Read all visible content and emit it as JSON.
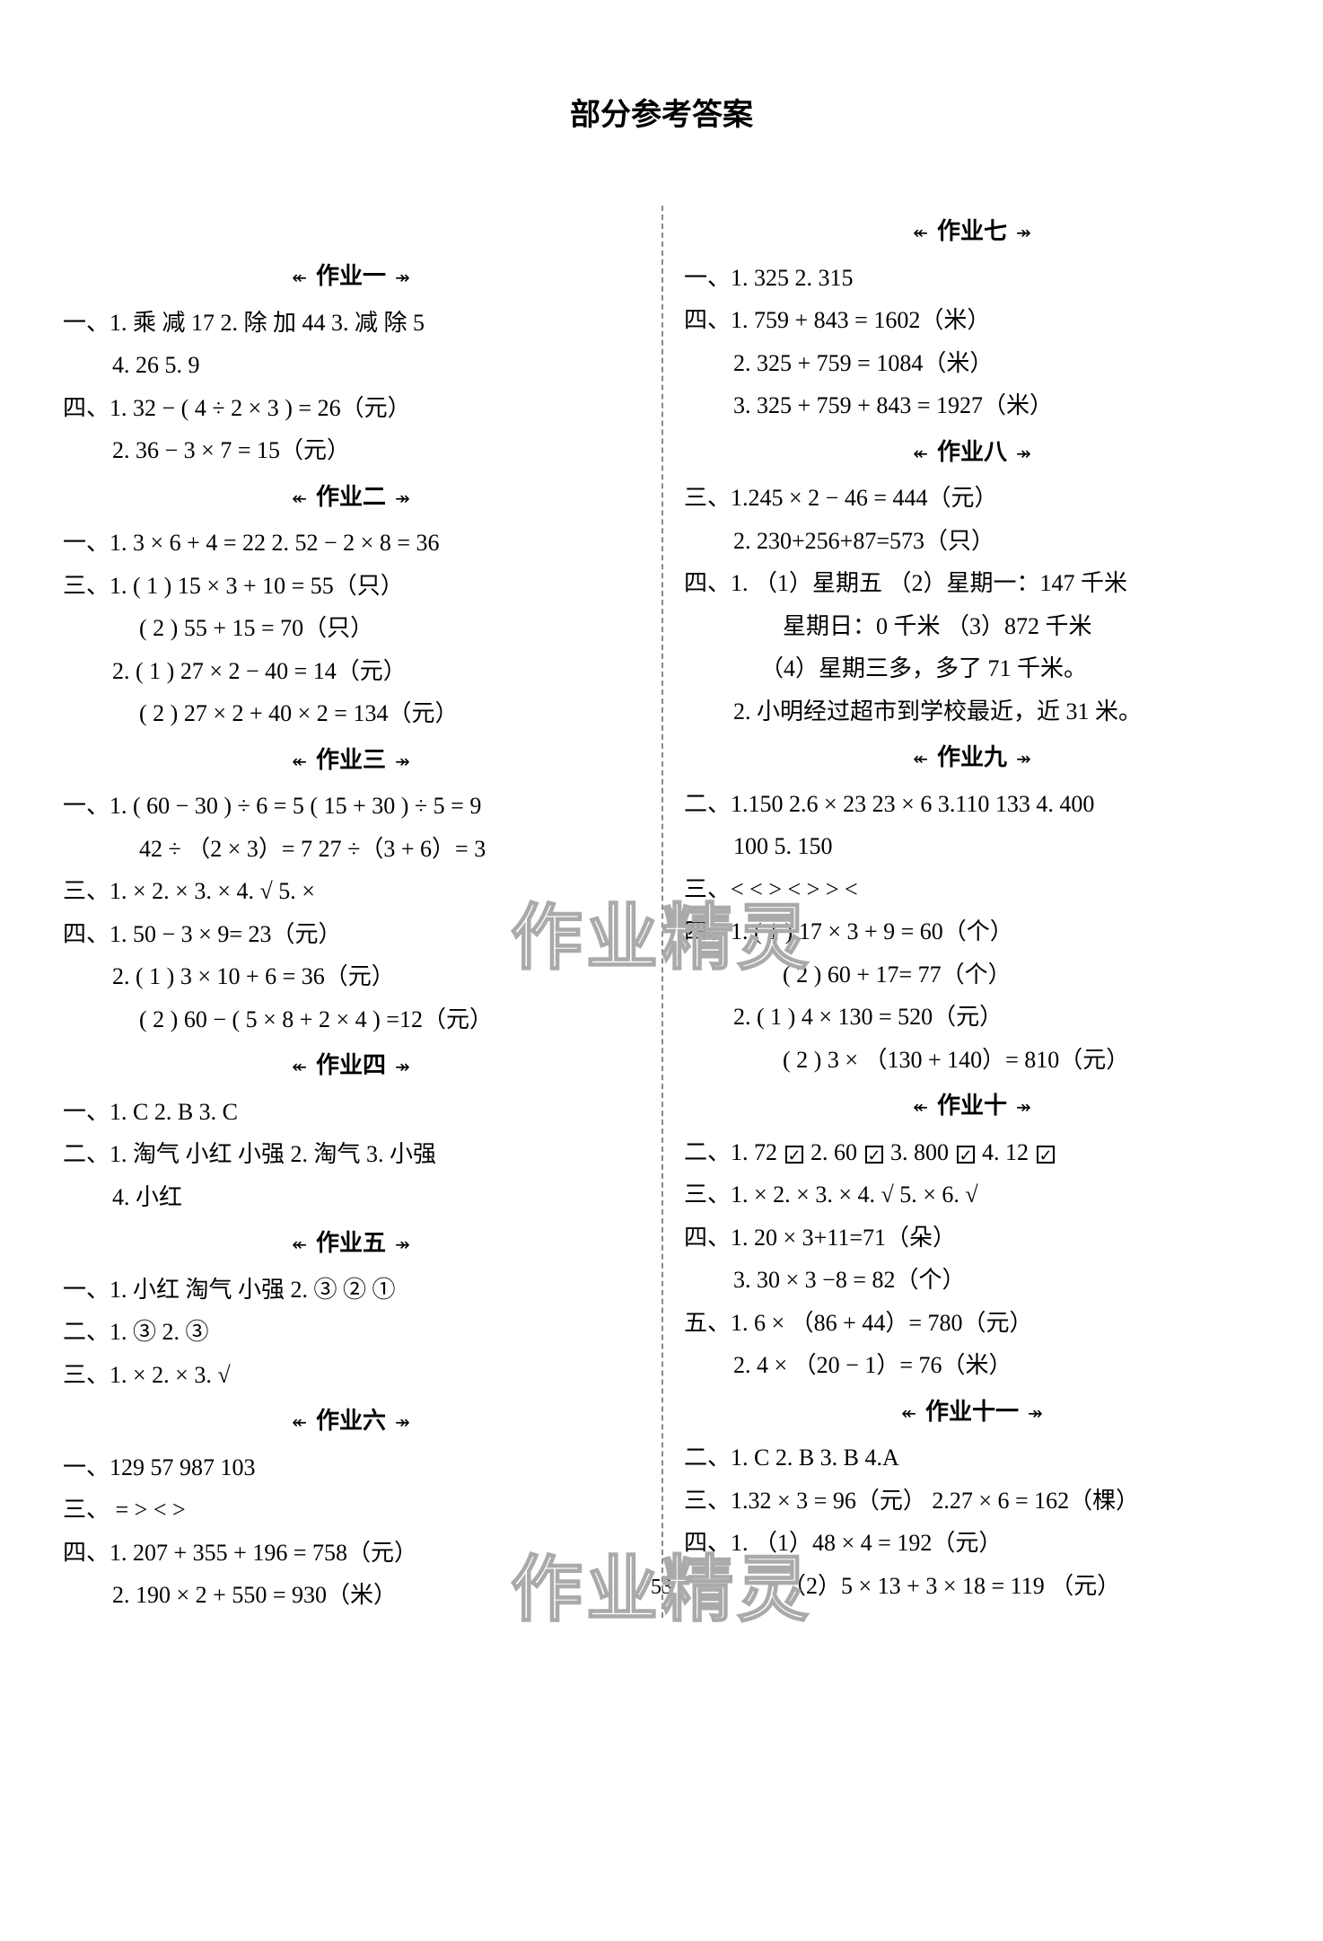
{
  "title": "部分参考答案",
  "pageNumber": "53",
  "watermark": "作业精灵",
  "arrowLeft": "↞",
  "arrowRight": "↠",
  "left": {
    "hw1": {
      "title": "作业一",
      "l1": "一、1. 乘 减 17  2. 除 加  44  3. 减  除  5",
      "l2": "4. 26   5. 9",
      "l3": "四、1. 32 − ( 4 ÷ 2 × 3 ) = 26（元）",
      "l4": "2. 36 − 3 × 7 = 15（元）"
    },
    "hw2": {
      "title": "作业二",
      "l1": "一、1. 3 × 6 + 4 = 22  2. 52 − 2 × 8 = 36",
      "l2": "三、1. ( 1 ) 15 × 3 + 10 = 55（只）",
      "l3": "( 2 ) 55 + 15 = 70（只）",
      "l4": "2. ( 1 ) 27 × 2 − 40 = 14（元）",
      "l5": "( 2 ) 27 × 2 + 40 × 2 = 134（元）"
    },
    "hw3": {
      "title": "作业三",
      "l1": "一、1. ( 60 − 30 ) ÷ 6 = 5   ( 15 + 30 ) ÷ 5 = 9",
      "l2": "42 ÷ （2 × 3）= 7     27 ÷（3 + 6）= 3",
      "l3": "三、1. ×  2. ×  3. ×  4. √  5. ×",
      "l4": "四、1. 50 − 3 × 9= 23（元）",
      "l5": "2. ( 1 ) 3 × 10 + 6 = 36（元）",
      "l6": "( 2 ) 60 − ( 5 × 8 + 2 × 4 ) =12（元）"
    },
    "hw4": {
      "title": "作业四",
      "l1": "一、1. C  2. B  3. C",
      "l2": "二、1. 淘气 小红 小强  2. 淘气  3. 小强",
      "l3": "4. 小红"
    },
    "hw5": {
      "title": "作业五",
      "l1": "一、1. 小红 淘气 小强  2. ③ ② ①",
      "l2": "二、1. ③  2. ③",
      "l3": "三、1. ×  2. ×  3. √"
    },
    "hw6": {
      "title": "作业六",
      "l1": "一、129  57  987  103",
      "l2": "三、 =  >  <  >",
      "l3": "四、1. 207 + 355 + 196 = 758（元）",
      "l4": "2. 190 × 2 + 550 = 930（米）"
    }
  },
  "right": {
    "hw7": {
      "title": "作业七",
      "l1": "一、1. 325  2. 315",
      "l2": "四、1. 759 + 843 = 1602（米）",
      "l3": "2. 325 + 759 = 1084（米）",
      "l4": "3. 325 + 759 + 843 = 1927（米）"
    },
    "hw8": {
      "title": "作业八",
      "l1": "三、1.245 × 2 − 46 = 444（元）",
      "l2": "2. 230+256+87=573（只）",
      "l3": "四、1. （1）星期五 （2）星期一：147 千米",
      "l4": "星期日：0 千米 （3）872 千米",
      "l5": "（4）星期三多，多了 71 千米。",
      "l6": "2. 小明经过超市到学校最近，近 31 米。"
    },
    "hw9": {
      "title": "作业九",
      "l1": "二、1.150  2.6 × 23  23 × 6  3.110  133  4. 400",
      "l2": "100  5. 150",
      "l3": "三、<    <    >    <    >    >    <",
      "l4": "四、1. ( 1 ) 17 × 3 + 9 = 60（个）",
      "l5": "( 2 ) 60 + 17= 77（个）",
      "l6": "2. ( 1 ) 4 × 130 = 520（元）",
      "l7": "( 2 ) 3 × （130 + 140）= 810（元）"
    },
    "hw10": {
      "title": "作业十",
      "l1a": "二、1. 72 ",
      "l1b": "  2. 60 ",
      "l1c": "  3. 800 ",
      "l1d": "  4. 12 ",
      "l2": "三、1. ×  2. ×  3. ×  4. √  5. ×  6. √",
      "l3": "四、1. 20 × 3+11=71（朵）",
      "l4": "3. 30 × 3 −8 = 82（个）",
      "l5": "五、1. 6 × （86 + 44）= 780（元）",
      "l6": "2. 4 × （20 − 1）= 76（米）"
    },
    "hw11": {
      "title": "作业十一",
      "l1": "二、1. C   2. B   3. B   4.A",
      "l2": "三、1.32 × 3 = 96（元）  2.27 × 6 = 162（棵）",
      "l3": "四、1. （1）48 × 4 = 192（元）",
      "l4": "（2）5 × 13 + 3 × 18 = 119 （元）"
    }
  }
}
